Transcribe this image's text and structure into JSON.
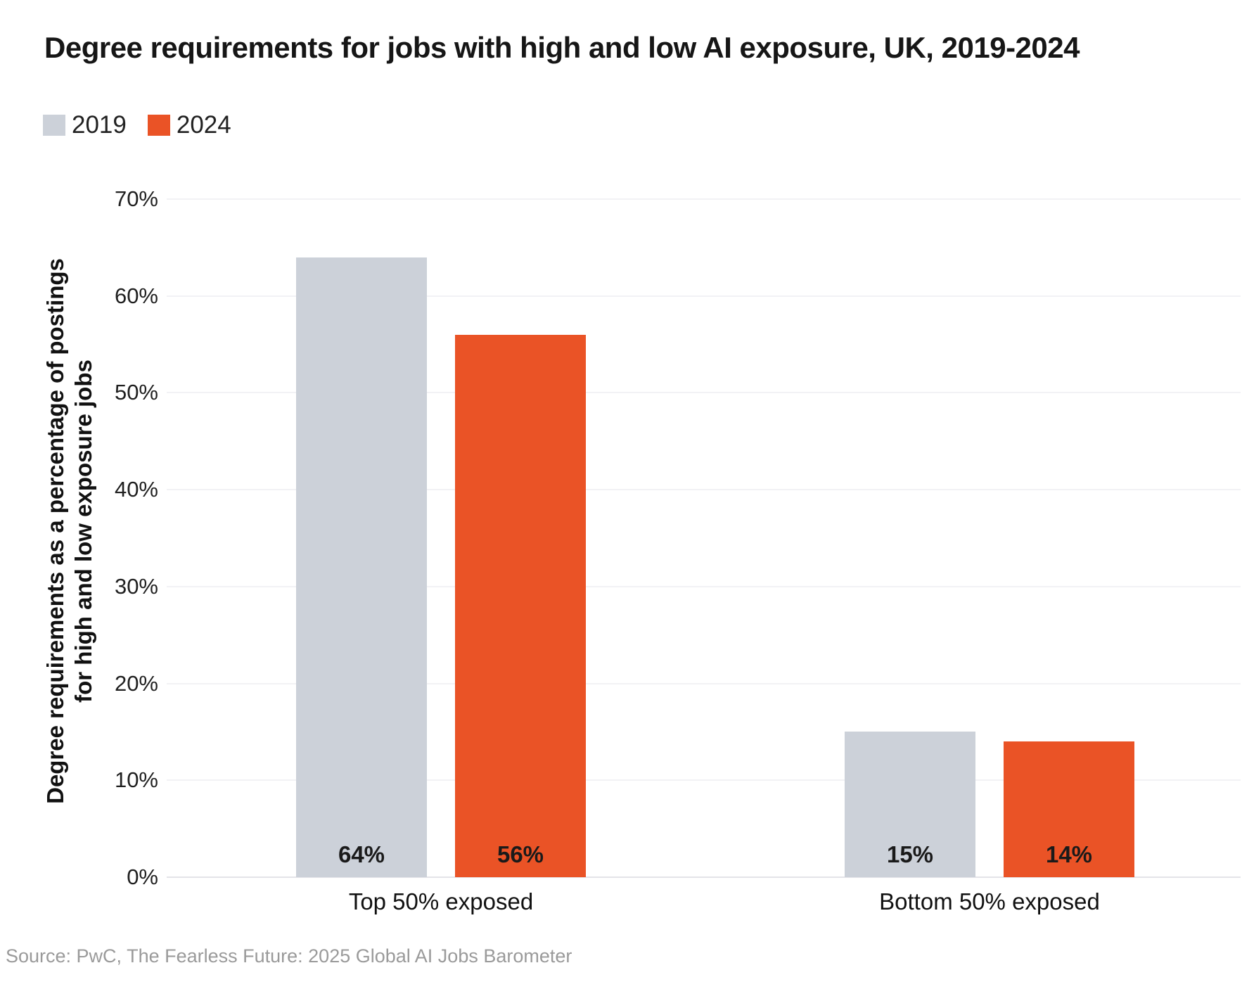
{
  "title": "Degree requirements for jobs with high and low AI exposure, UK, 2019-2024",
  "legend": {
    "items": [
      {
        "label": "2019",
        "color": "#CCD1D9"
      },
      {
        "label": "2024",
        "color": "#EA5326"
      }
    ]
  },
  "y_axis": {
    "label_line1": "Degree requirements as a percentage of postings",
    "label_line2": "for high and low exposure jobs"
  },
  "source": "Source: PwC, The Fearless Future: 2025 Global AI Jobs Barometer",
  "chart_data": {
    "type": "bar",
    "title": "Degree requirements for jobs with high and low AI exposure, UK, 2019-2024",
    "categories": [
      "Top 50% exposed",
      "Bottom 50% exposed"
    ],
    "series": [
      {
        "name": "2019",
        "color": "#CCD1D9",
        "values": [
          64,
          15
        ],
        "value_labels": [
          "64%",
          "15%"
        ]
      },
      {
        "name": "2024",
        "color": "#EA5326",
        "values": [
          56,
          14
        ],
        "value_labels": [
          "56%",
          "14%"
        ]
      }
    ],
    "xlabel": "",
    "ylabel": "Degree requirements as a percentage of postings for high and low exposure jobs",
    "ylim": [
      0,
      70
    ],
    "yticks": [
      0,
      10,
      20,
      30,
      40,
      50,
      60,
      70
    ],
    "ytick_labels": [
      "0%",
      "10%",
      "20%",
      "30%",
      "40%",
      "50%",
      "60%",
      "70%"
    ],
    "grid": true,
    "legend_position": "top-left"
  }
}
